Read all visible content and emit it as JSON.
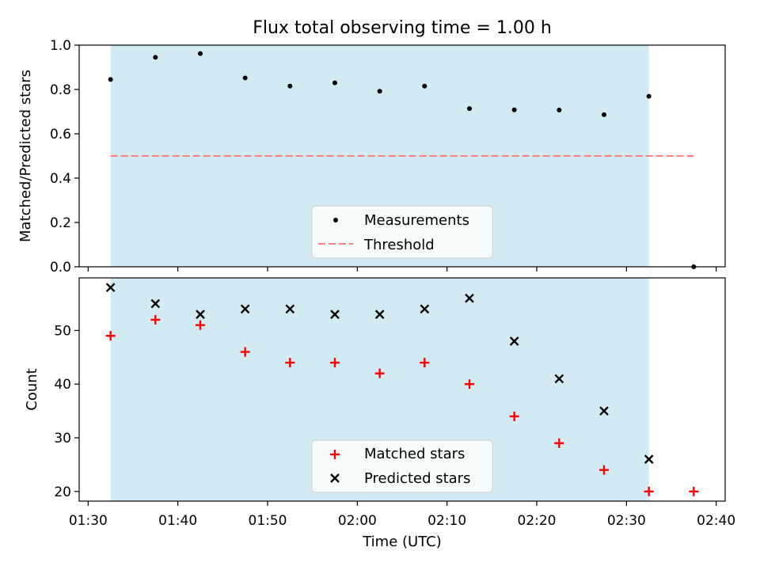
{
  "figure_title": "Flux total observing time = 1.00 h",
  "colors": {
    "shade": "#add8e6",
    "measurement": "#000000",
    "threshold": "#ff7f7f",
    "matched": "#ff0000",
    "predicted": "#000000"
  },
  "chart_data": [
    {
      "type": "scatter",
      "xlabel": "",
      "ylabel": "Matched/Predicted stars",
      "xlim": [
        "01:29",
        "02:41"
      ],
      "ylim": [
        0,
        1.0
      ],
      "yticks": [
        "0.0",
        "0.2",
        "0.4",
        "0.6",
        "0.8",
        "1.0"
      ],
      "shaded_span": [
        "01:32:30",
        "02:32:30"
      ],
      "legend_position": "lower center",
      "series": [
        {
          "name": "Measurements",
          "marker": "dot",
          "x": [
            "01:32:30",
            "01:37:30",
            "01:42:30",
            "01:47:30",
            "01:52:30",
            "01:57:30",
            "02:02:30",
            "02:07:30",
            "02:12:30",
            "02:17:30",
            "02:22:30",
            "02:27:30",
            "02:32:30",
            "02:37:30"
          ],
          "y": [
            0.845,
            0.945,
            0.962,
            0.852,
            0.815,
            0.83,
            0.792,
            0.815,
            0.714,
            0.708,
            0.707,
            0.686,
            0.769,
            0.0
          ]
        },
        {
          "name": "Threshold",
          "style": "dashed",
          "x": [
            "01:32:30",
            "02:37:30"
          ],
          "y": [
            0.5,
            0.5
          ]
        }
      ]
    },
    {
      "type": "scatter",
      "xlabel": "Time (UTC)",
      "ylabel": "Count",
      "xlim": [
        "01:29",
        "02:41"
      ],
      "ylim": [
        18.2,
        59.8
      ],
      "xticks": [
        "01:30",
        "01:40",
        "01:50",
        "02:00",
        "02:10",
        "02:20",
        "02:30",
        "02:40"
      ],
      "yticks": [
        "20",
        "30",
        "40",
        "50"
      ],
      "shaded_span": [
        "01:32:30",
        "02:32:30"
      ],
      "legend_position": "lower center",
      "series": [
        {
          "name": "Matched stars",
          "marker": "plus",
          "x": [
            "01:32:30",
            "01:37:30",
            "01:42:30",
            "01:47:30",
            "01:52:30",
            "01:57:30",
            "02:02:30",
            "02:07:30",
            "02:12:30",
            "02:17:30",
            "02:22:30",
            "02:27:30",
            "02:32:30",
            "02:37:30"
          ],
          "y": [
            49,
            52,
            51,
            46,
            44,
            44,
            42,
            44,
            40,
            34,
            29,
            24,
            20,
            20
          ]
        },
        {
          "name": "Predicted stars",
          "marker": "x",
          "x": [
            "01:32:30",
            "01:37:30",
            "01:42:30",
            "01:47:30",
            "01:52:30",
            "01:57:30",
            "02:02:30",
            "02:07:30",
            "02:12:30",
            "02:17:30",
            "02:22:30",
            "02:27:30",
            "02:32:30"
          ],
          "y": [
            58,
            55,
            53,
            54,
            54,
            53,
            53,
            54,
            56,
            48,
            41,
            35,
            26
          ]
        }
      ]
    }
  ]
}
